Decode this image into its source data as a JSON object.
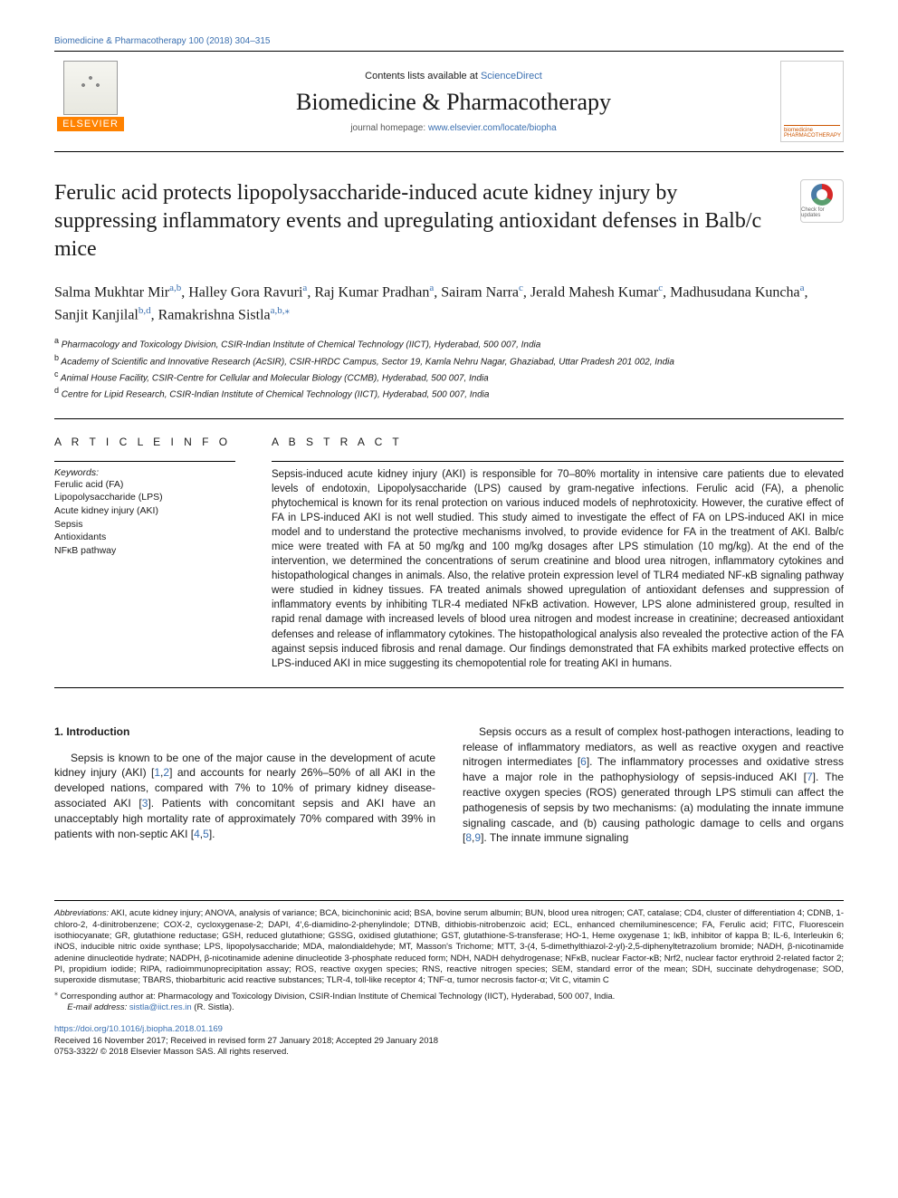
{
  "colors": {
    "link": "#3a6fb0",
    "text": "#1a1a1a",
    "elsevier_orange": "#ff8200",
    "cover_orange": "#cc5500",
    "background": "#ffffff"
  },
  "top_citation": "Biomedicine & Pharmacotherapy 100 (2018) 304–315",
  "header": {
    "contents_prefix": "Contents lists available at ",
    "contents_link_text": "ScienceDirect",
    "journal": "Biomedicine & Pharmacotherapy",
    "homepage_prefix": "journal homepage: ",
    "homepage_link_text": "www.elsevier.com/locate/biopha",
    "publisher_logo_text": "ELSEVIER",
    "cover_label_line1": "biomedicine",
    "cover_label_line2": "PHARMACOTHERAPY"
  },
  "check_updates_label": "Check for updates",
  "title": "Ferulic acid protects lipopolysaccharide-induced acute kidney injury by suppressing inflammatory events and upregulating antioxidant defenses in Balb/c mice",
  "authors_html": "Salma Mukhtar Mir<a>a,b</a>, Halley Gora Ravuri<a>a</a>, Raj Kumar Pradhan<a>a</a>, Sairam Narra<a>c</a>, Jerald Mahesh Kumar<a>c</a>, Madhusudana Kuncha<a>a</a>, Sanjit Kanjilal<a>b,d</a>, Ramakrishna Sistla<a>a,b,</a><a>⁎</a>",
  "affiliations": [
    {
      "sup": "a",
      "text": "Pharmacology and Toxicology Division, CSIR-Indian Institute of Chemical Technology (IICT), Hyderabad, 500 007, India"
    },
    {
      "sup": "b",
      "text": "Academy of Scientific and Innovative Research (AcSIR), CSIR-HRDC Campus, Sector 19, Kamla Nehru Nagar, Ghaziabad, Uttar Pradesh 201 002, India"
    },
    {
      "sup": "c",
      "text": "Animal House Facility, CSIR-Centre for Cellular and Molecular Biology (CCMB), Hyderabad, 500 007, India"
    },
    {
      "sup": "d",
      "text": "Centre for Lipid Research, CSIR-Indian Institute of Chemical Technology (IICT), Hyderabad, 500 007, India"
    }
  ],
  "article_info": {
    "heading": "A R T I C L E  I N F O",
    "keywords_label": "Keywords:",
    "keywords": [
      "Ferulic acid (FA)",
      "Lipopolysaccharide (LPS)",
      "Acute kidney injury (AKI)",
      "Sepsis",
      "Antioxidants",
      "NFκB pathway"
    ]
  },
  "abstract": {
    "heading": "A B S T R A C T",
    "text": "Sepsis-induced acute kidney injury (AKI) is responsible for 70–80% mortality in intensive care patients due to elevated levels of endotoxin, Lipopolysaccharide (LPS) caused by gram-negative infections. Ferulic acid (FA), a phenolic phytochemical is known for its renal protection on various induced models of nephrotoxicity. However, the curative effect of FA in LPS-induced AKI is not well studied. This study aimed to investigate the effect of FA on LPS-induced AKI in mice model and to understand the protective mechanisms involved, to provide evidence for FA in the treatment of AKI. Balb/c mice were treated with FA at 50 mg/kg and 100 mg/kg dosages after LPS stimulation (10 mg/kg). At the end of the intervention, we determined the concentrations of serum creatinine and blood urea nitrogen, inflammatory cytokines and histopathological changes in animals. Also, the relative protein expression level of TLR4 mediated NF-κB signaling pathway were studied in kidney tissues. FA treated animals showed upregulation of antioxidant defenses and suppression of inflammatory events by inhibiting TLR-4 mediated NFκB activation. However, LPS alone administered group, resulted in rapid renal damage with increased levels of blood urea nitrogen and modest increase in creatinine; decreased antioxidant defenses and release of inflammatory cytokines. The histopathological analysis also revealed the protective action of the FA against sepsis induced fibrosis and renal damage. Our findings demonstrated that FA exhibits marked protective effects on LPS-induced AKI in mice suggesting its chemopotential role for treating AKI in humans."
  },
  "introduction": {
    "heading": "1. Introduction",
    "para1_pre": "Sepsis is known to be one of the major cause in the development of acute kidney injury (AKI) [",
    "para1_ref1": "1",
    "para1_mid1": ",",
    "para1_ref2": "2",
    "para1_mid2": "] and accounts for nearly 26%–50% of all AKI in the developed nations, compared with 7% to 10% of primary kidney disease-associated AKI [",
    "para1_ref3": "3",
    "para1_mid3": "]. Patients with concomitant sepsis and AKI have an unacceptably high mortality rate of approximately 70% compared with 39% in patients with non-septic AKI [",
    "para1_ref4": "4",
    "para1_mid4": ",",
    "para1_ref5": "5",
    "para1_post": "].",
    "para2_pre": "Sepsis occurs as a result of complex host-pathogen interactions, leading to release of inflammatory mediators, as well as reactive oxygen and reactive nitrogen intermediates [",
    "para2_ref6": "6",
    "para2_mid1": "]. The inflammatory processes and oxidative stress have a major role in the pathophysiology of sepsis-induced AKI [",
    "para2_ref7": "7",
    "para2_mid2": "]. The reactive oxygen species (ROS) generated through LPS stimuli can affect the pathogenesis of sepsis by two mechanisms: (a) modulating the innate immune signaling cascade, and (b) causing pathologic damage to cells and organs [",
    "para2_ref8": "8",
    "para2_mid3": ",",
    "para2_ref9": "9",
    "para2_post": "]. The innate immune signaling"
  },
  "footnotes": {
    "abbrev_label": "Abbreviations:",
    "abbrev_text": " AKI, acute kidney injury; ANOVA, analysis of variance; BCA, bicinchoninic acid; BSA, bovine serum albumin; BUN, blood urea nitrogen; CAT, catalase; CD4, cluster of differentiation 4; CDNB, 1-chloro-2, 4-dinitrobenzene; COX-2, cycloxygenase-2; DAPI, 4′,6-diamidino-2-phenylindole; DTNB, dithiobis-nitrobenzoic acid; ECL, enhanced chemiluminescence; FA, Ferulic acid; FITC, Fluorescein isothiocyanate; GR, glutathione reductase; GSH, reduced glutathione; GSSG, oxidised glutathione; GST, glutathione-S-transferase; HO-1, Heme oxygenase 1; IκB, inhibitor of kappa B; IL-6, Interleukin 6; iNOS, inducible nitric oxide synthase; LPS, lipopolysaccharide; MDA, malondialdehyde; MT, Masson's Trichome; MTT, 3-(4, 5-dimethylthiazol-2-yl)-2,5-diphenyltetrazolium bromide; NADH, β-nicotinamide adenine dinucleotide hydrate; NADPH, β-nicotinamide adenine dinucleotide 3-phosphate reduced form; NDH, NADH dehydrogenase; NFκB, nuclear Factor-κB; Nrf2, nuclear factor erythroid 2-related factor 2; PI, propidium iodide; RIPA, radioimmunoprecipitation assay; ROS, reactive oxygen species; RNS, reactive nitrogen species; SEM, standard error of the mean; SDH, succinate dehydrogenase; SOD, superoxide dismutase; TBARS, thiobarbituric acid reactive substances; TLR-4, toll-like receptor 4; TNF-α, tumor necrosis factor-α; Vit C, vitamin C",
    "corresponding_sup": "⁎",
    "corresponding": " Corresponding author at: Pharmacology and Toxicology Division, CSIR-Indian Institute of Chemical Technology (IICT), Hyderabad, 500 007, India.",
    "email_label": "E-mail address: ",
    "email": "sistla@iict.res.in",
    "email_suffix": " (R. Sistla)."
  },
  "doi": {
    "link": "https://doi.org/10.1016/j.biopha.2018.01.169",
    "received": "Received 16 November 2017; Received in revised form 27 January 2018; Accepted 29 January 2018",
    "issn_copyright": "0753-3322/ © 2018 Elsevier Masson SAS. All rights reserved."
  }
}
